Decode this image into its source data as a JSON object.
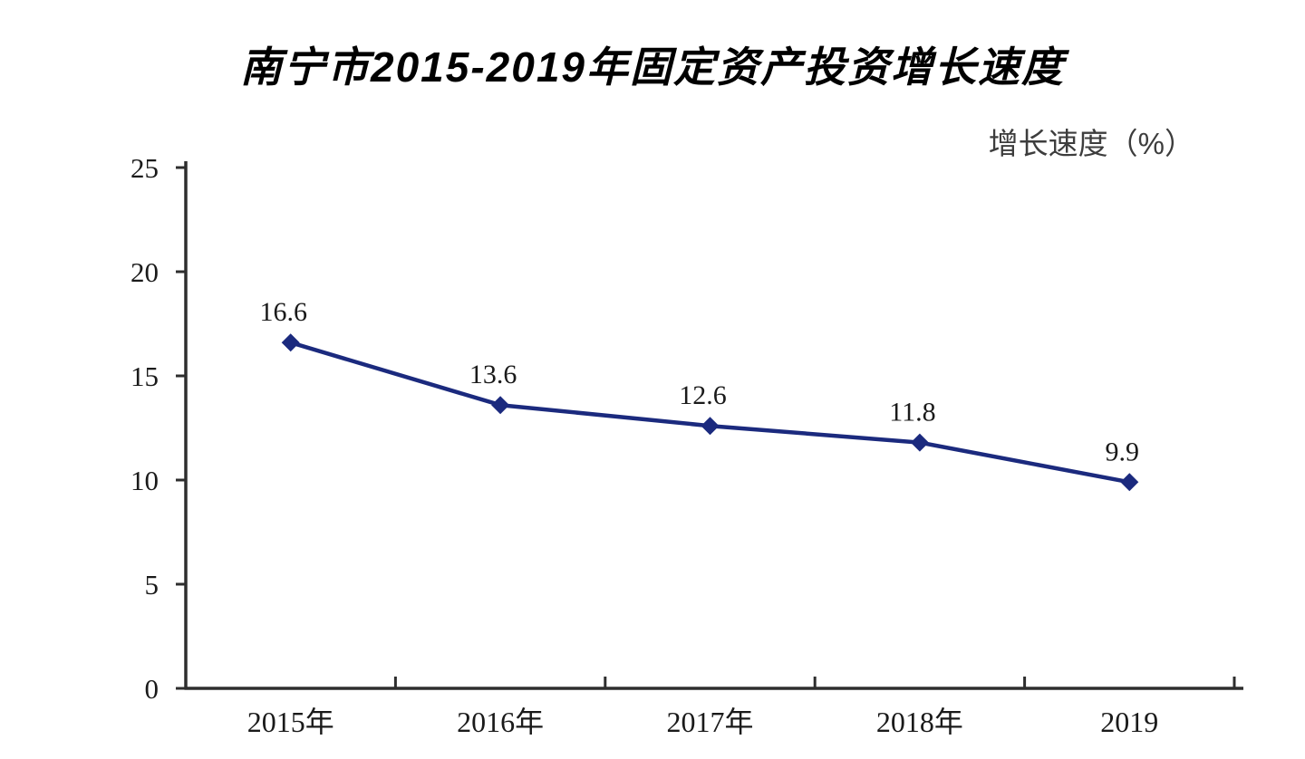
{
  "chart_data": {
    "type": "line",
    "title": "南宁市2015-2019年固定资产投资增长速度",
    "ylabel": "增长速度（%）",
    "xlabel": "",
    "categories": [
      "2015年",
      "2016年",
      "2017年",
      "2018年",
      "2019"
    ],
    "series": [
      {
        "name": "",
        "values": [
          16.6,
          13.6,
          12.6,
          11.8,
          9.9
        ]
      }
    ],
    "data_labels": [
      "16.6",
      "13.6",
      "12.6",
      "11.8",
      "9.9"
    ],
    "ylim": [
      0,
      25
    ],
    "yticks": [
      0,
      5,
      10,
      15,
      20,
      25
    ],
    "grid": false,
    "legend_position": "none",
    "colors": {
      "line": "#1b2a7e",
      "marker": "#1b2a7e",
      "axis": "#2e2e2e",
      "text": "#1a1a1a",
      "unit_label": "#3d3d3d",
      "background": "#ffffff"
    }
  }
}
